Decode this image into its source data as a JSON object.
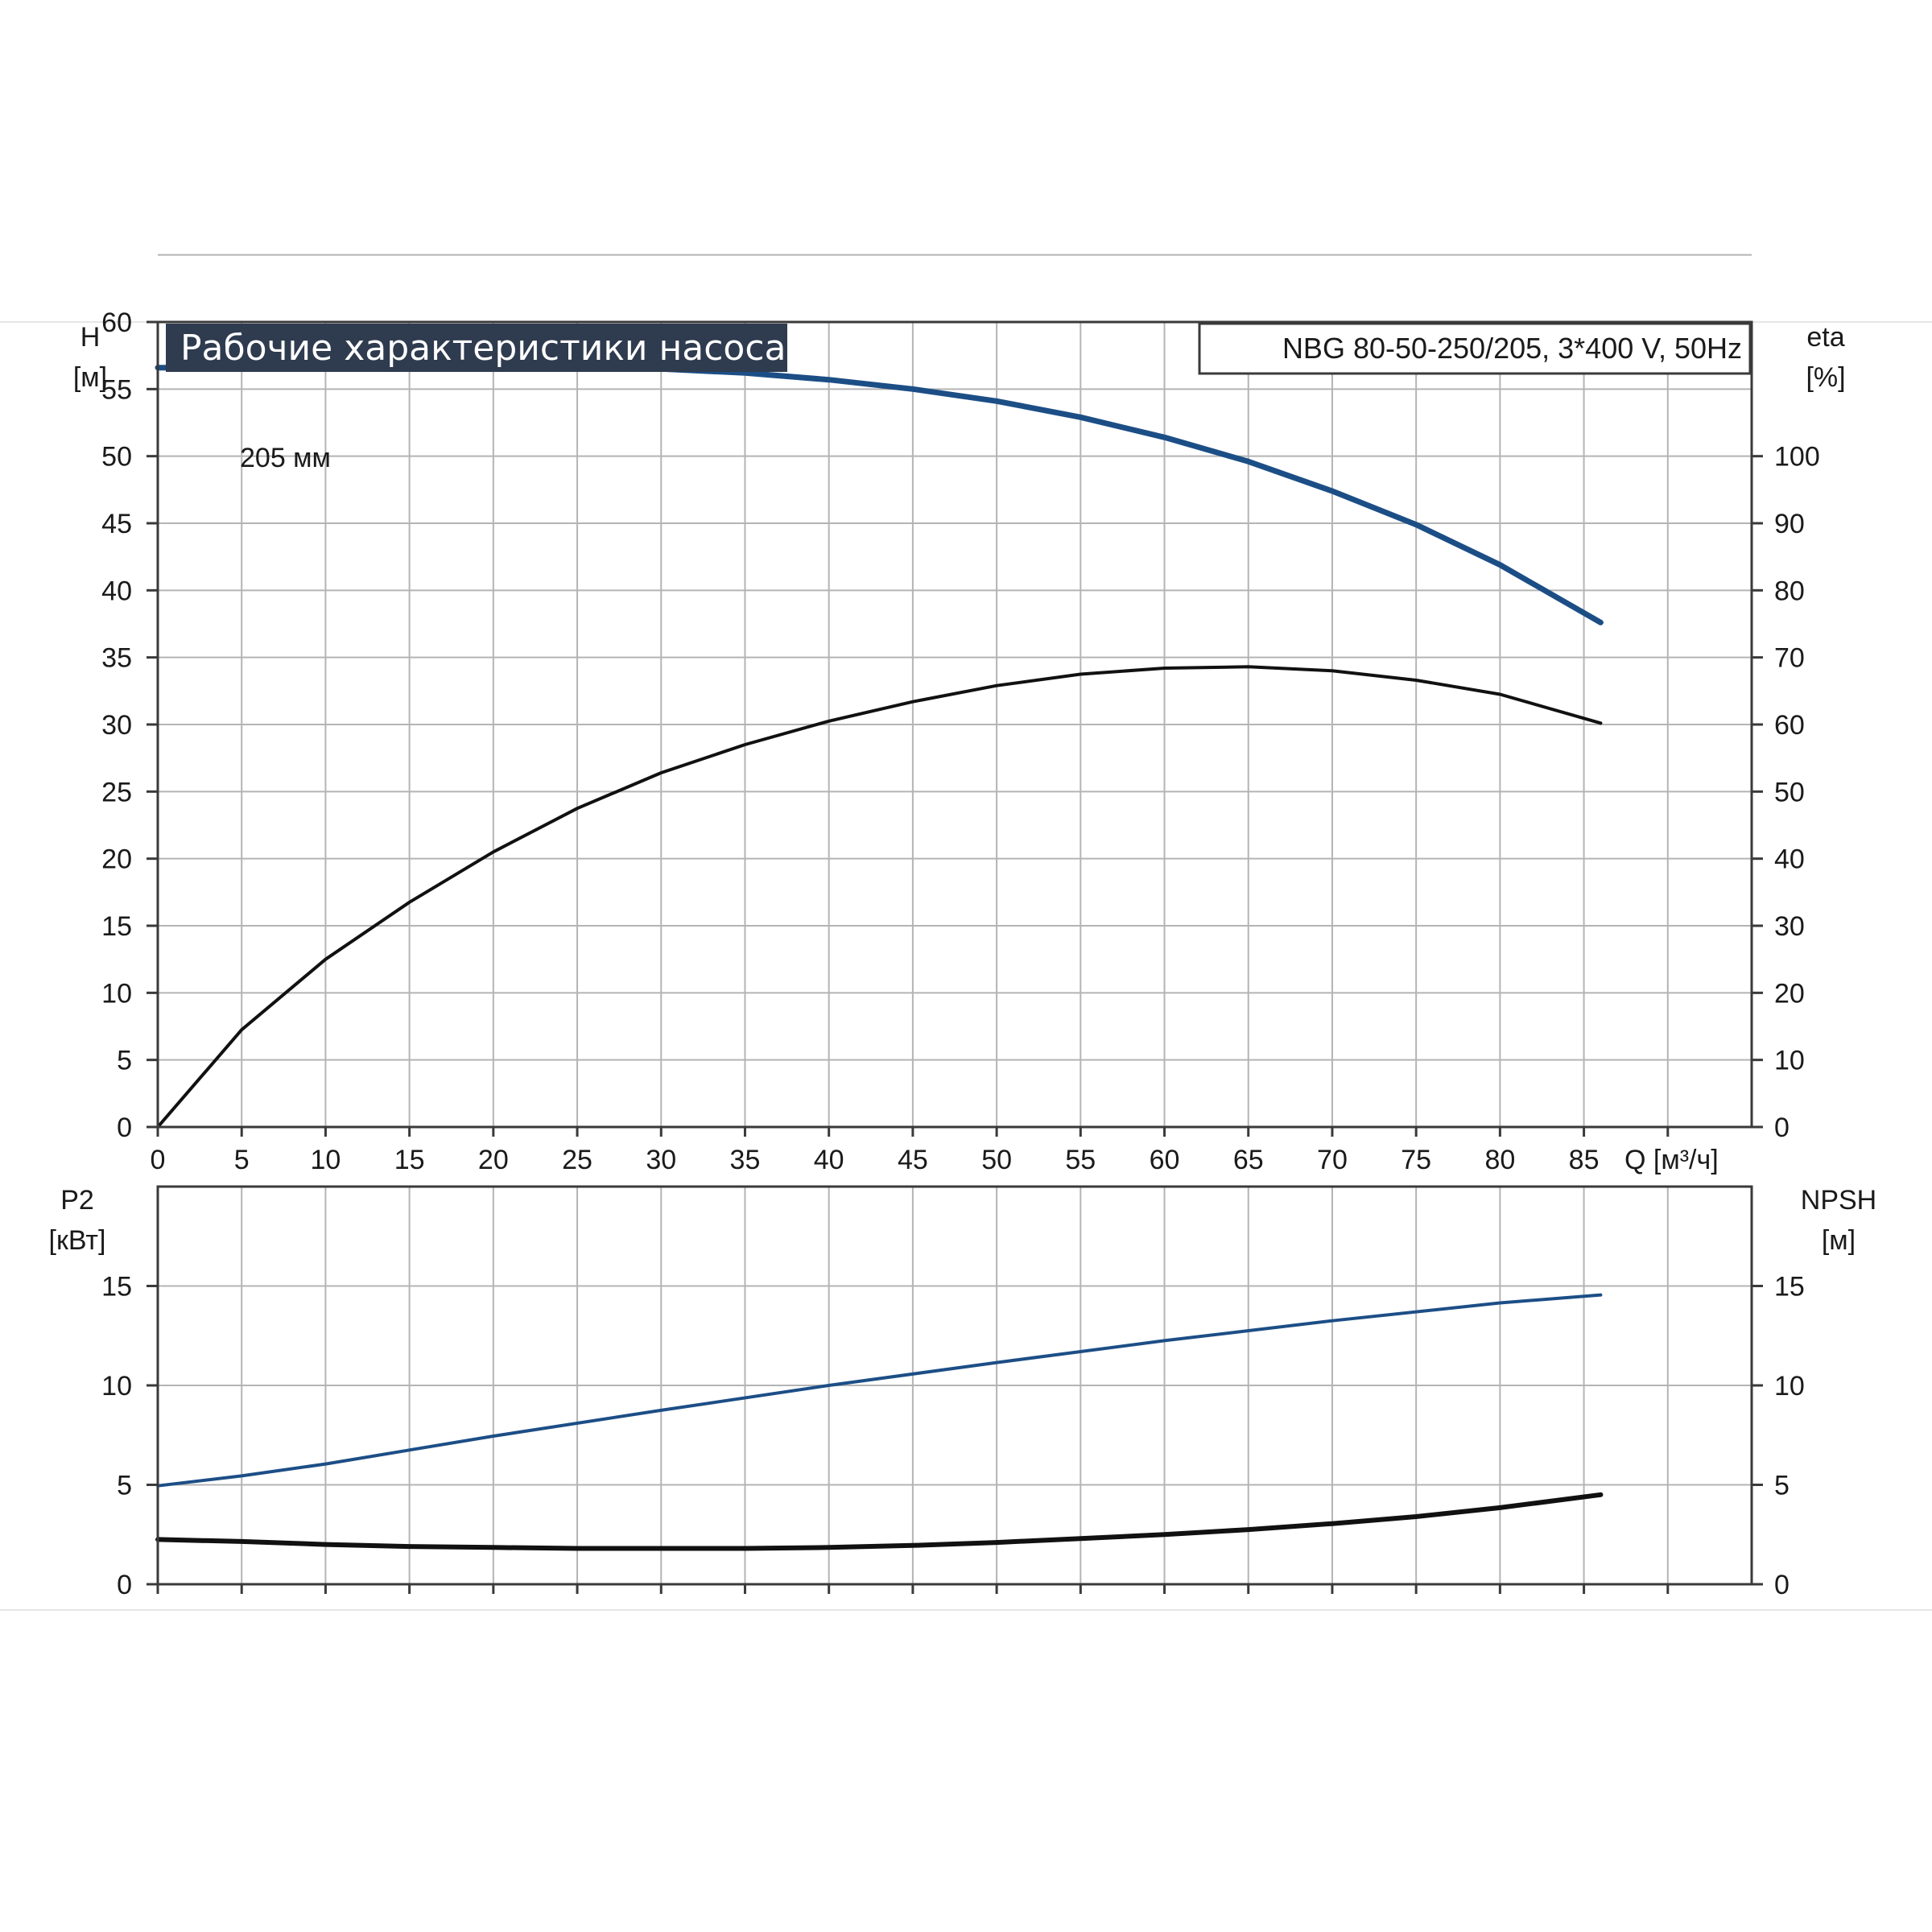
{
  "title": "Рабочие характеристики насоса",
  "model": "NBG 80-50-250/205, 3*400 V, 50Hz",
  "colors": {
    "blue": "#1c4e86",
    "black": "#111111",
    "title_bg": "#2f3b4f",
    "grid": "#b4b4b4"
  },
  "chart_data": [
    {
      "type": "line",
      "panel": "top",
      "x_axis": {
        "label": "Q [м³/ч]",
        "ticks": [
          0,
          5,
          10,
          15,
          20,
          25,
          30,
          35,
          40,
          45,
          50,
          55,
          60,
          65,
          70,
          75,
          80,
          85
        ],
        "range": [
          0,
          95
        ]
      },
      "y_left": {
        "label_top": "H",
        "label_unit": "[м]",
        "ticks": [
          0,
          5,
          10,
          15,
          20,
          25,
          30,
          35,
          40,
          45,
          50,
          55,
          60
        ],
        "range": [
          0,
          60
        ]
      },
      "y_right": {
        "label_top": "eta",
        "label_unit": "[%]",
        "ticks": [
          0,
          10,
          20,
          30,
          40,
          50,
          60,
          70,
          80,
          90,
          100
        ],
        "range": [
          0,
          120
        ]
      },
      "curve_label": "205 мм",
      "series": [
        {
          "axis": "left",
          "color": "blue",
          "points": [
            [
              0,
              56.6
            ],
            [
              8,
              56.6
            ],
            [
              10,
              56.7
            ],
            [
              15,
              56.8
            ],
            [
              20,
              56.8
            ],
            [
              25,
              56.7
            ],
            [
              30,
              56.5
            ],
            [
              35,
              56.2
            ],
            [
              40,
              55.7
            ],
            [
              45,
              55.0
            ],
            [
              50,
              54.1
            ],
            [
              55,
              52.9
            ],
            [
              60,
              51.4
            ],
            [
              65,
              49.6
            ],
            [
              70,
              47.4
            ],
            [
              75,
              44.9
            ],
            [
              80,
              41.9
            ],
            [
              86,
              37.6
            ]
          ]
        },
        {
          "axis": "right",
          "color": "black",
          "points": [
            [
              0,
              0
            ],
            [
              5,
              14.5
            ],
            [
              10,
              25
            ],
            [
              15,
              33.5
            ],
            [
              20,
              41
            ],
            [
              25,
              47.5
            ],
            [
              30,
              52.8
            ],
            [
              35,
              57
            ],
            [
              40,
              60.5
            ],
            [
              45,
              63.4
            ],
            [
              50,
              65.8
            ],
            [
              55,
              67.5
            ],
            [
              60,
              68.4
            ],
            [
              65,
              68.6
            ],
            [
              70,
              68.0
            ],
            [
              75,
              66.6
            ],
            [
              80,
              64.5
            ],
            [
              86,
              60.2
            ]
          ]
        }
      ]
    },
    {
      "type": "line",
      "panel": "bottom",
      "x_axis": {
        "ticks": [
          0,
          5,
          10,
          15,
          20,
          25,
          30,
          35,
          40,
          45,
          50,
          55,
          60,
          65,
          70,
          75,
          80,
          85
        ],
        "range": [
          0,
          95
        ]
      },
      "y_left": {
        "label_top": "P2",
        "label_unit": "[кВт]",
        "ticks": [
          0,
          5,
          10,
          15
        ],
        "range": [
          0,
          20
        ]
      },
      "y_right": {
        "label_top": "NPSH",
        "label_unit": "[м]",
        "ticks": [
          0,
          5,
          10,
          15
        ],
        "range": [
          0,
          20
        ]
      },
      "series": [
        {
          "axis": "left",
          "color": "blue",
          "points": [
            [
              0,
              4.95
            ],
            [
              5,
              5.45
            ],
            [
              10,
              6.05
            ],
            [
              20,
              7.45
            ],
            [
              30,
              8.75
            ],
            [
              40,
              10.0
            ],
            [
              50,
              11.15
            ],
            [
              60,
              12.25
            ],
            [
              70,
              13.25
            ],
            [
              80,
              14.15
            ],
            [
              86,
              14.55
            ]
          ]
        },
        {
          "axis": "right",
          "color": "black",
          "points": [
            [
              0,
              2.25
            ],
            [
              5,
              2.15
            ],
            [
              10,
              2.0
            ],
            [
              15,
              1.9
            ],
            [
              20,
              1.85
            ],
            [
              25,
              1.8
            ],
            [
              30,
              1.8
            ],
            [
              35,
              1.8
            ],
            [
              40,
              1.85
            ],
            [
              45,
              1.95
            ],
            [
              50,
              2.1
            ],
            [
              55,
              2.3
            ],
            [
              60,
              2.5
            ],
            [
              65,
              2.75
            ],
            [
              70,
              3.05
            ],
            [
              75,
              3.4
            ],
            [
              80,
              3.85
            ],
            [
              86,
              4.5
            ]
          ]
        }
      ]
    }
  ]
}
